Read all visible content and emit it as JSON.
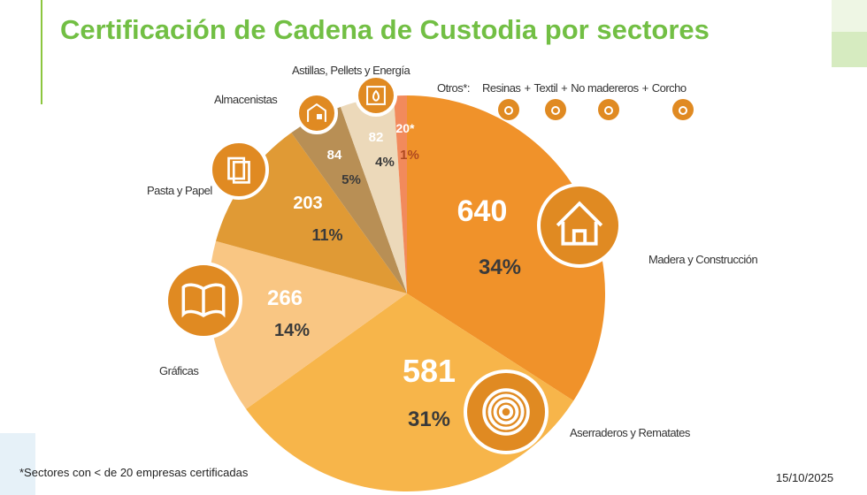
{
  "title": "Certificación de Cadena de Custodia por sectores",
  "footnote": "*Sectores con < de 20 empresas certificadas",
  "date": "15/10/2025",
  "otros_label": "Otros*:",
  "otros_items": [
    "Resinas",
    "+",
    "Textil",
    "+",
    "No madereros",
    "+",
    "Corcho"
  ],
  "otros_icons": [
    "drop-icon",
    "textile-icon",
    "leaf-icon",
    "cork-icon"
  ],
  "chart_data": {
    "type": "pie",
    "title": "Certificación de Cadena de Custodia por sectores",
    "start": "12 o'clock, clockwise",
    "slices": [
      {
        "name": "Madera y Construcción",
        "value": 640,
        "value_label": "640",
        "pct": "34%",
        "color": "#F0922A",
        "icon": "house-icon"
      },
      {
        "name": "Aserraderos y Rematates",
        "value": 581,
        "value_label": "581",
        "pct": "31%",
        "color": "#F7B54A",
        "icon": "tree-rings-icon"
      },
      {
        "name": "Gráficas",
        "value": 266,
        "value_label": "266",
        "pct": "14%",
        "color": "#F9C683",
        "icon": "book-icon"
      },
      {
        "name": "Pasta y Papel",
        "value": 203,
        "value_label": "203",
        "pct": "11%",
        "color": "#E09A35",
        "icon": "paper-icon"
      },
      {
        "name": "Almacenistas",
        "value": 84,
        "value_label": "84",
        "pct": "5%",
        "color": "#B88F55",
        "icon": "warehouse-icon"
      },
      {
        "name": "Astillas, Pellets y Energía",
        "value": 82,
        "value_label": "82",
        "pct": "4%",
        "color": "#ECD9BA",
        "icon": "fireplace-icon"
      },
      {
        "name": "Otros",
        "value": 20,
        "value_label": "20*",
        "pct": "1%",
        "color": "#F28A5C",
        "icon": ""
      }
    ]
  }
}
